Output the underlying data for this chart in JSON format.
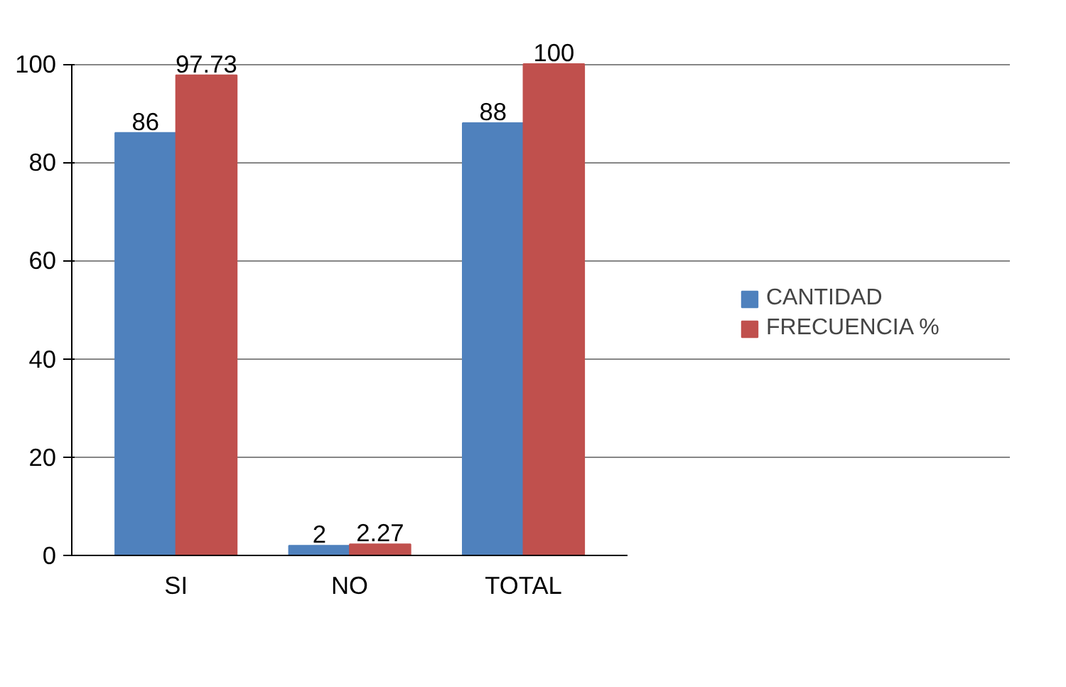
{
  "chart_data": {
    "type": "bar",
    "categories": [
      "SI",
      "NO",
      "TOTAL"
    ],
    "series": [
      {
        "name": "CANTIDAD",
        "color": "#4f81bd",
        "values": [
          86,
          2,
          88
        ]
      },
      {
        "name": "FRECUENCIA %",
        "color": "#c0504d",
        "values": [
          97.73,
          2.27,
          100
        ]
      }
    ],
    "ylim": [
      0,
      100
    ],
    "yticks": [
      0,
      20,
      40,
      60,
      80,
      100
    ],
    "grid": "y",
    "legend": "right",
    "data_labels": true
  }
}
